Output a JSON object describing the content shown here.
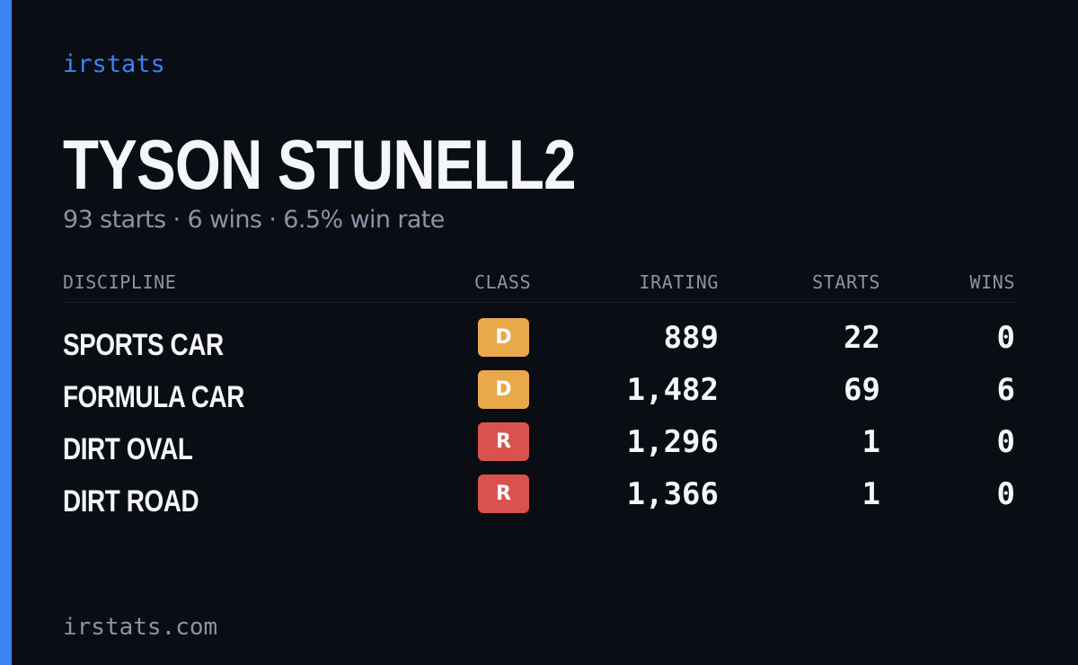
{
  "brand": {
    "name": "irstats"
  },
  "player": {
    "name": "TYSON STUNELL2",
    "summary": "93 starts · 6 wins · 6.5% win rate"
  },
  "table": {
    "headers": {
      "discipline": "DISCIPLINE",
      "class": "CLASS",
      "irating": "IRATING",
      "starts": "STARTS",
      "wins": "WINS"
    },
    "rows": [
      {
        "discipline": "SPORTS CAR",
        "class": "D",
        "class_color": "#e9a94a",
        "irating": "889",
        "starts": "22",
        "wins": "0"
      },
      {
        "discipline": "FORMULA CAR",
        "class": "D",
        "class_color": "#e9a94a",
        "irating": "1,482",
        "starts": "69",
        "wins": "6"
      },
      {
        "discipline": "DIRT OVAL",
        "class": "R",
        "class_color": "#d9524f",
        "irating": "1,296",
        "starts": "1",
        "wins": "0"
      },
      {
        "discipline": "DIRT ROAD",
        "class": "R",
        "class_color": "#d9524f",
        "irating": "1,366",
        "starts": "1",
        "wins": "0"
      }
    ]
  },
  "footer": {
    "domain": "irstats.com"
  },
  "colors": {
    "background": "#0a0d14",
    "accent": "#3b82f6",
    "text_primary": "#f5f6fa",
    "text_muted": "#8b93a5",
    "class_d": "#e9a94a",
    "class_r": "#d9524f"
  }
}
